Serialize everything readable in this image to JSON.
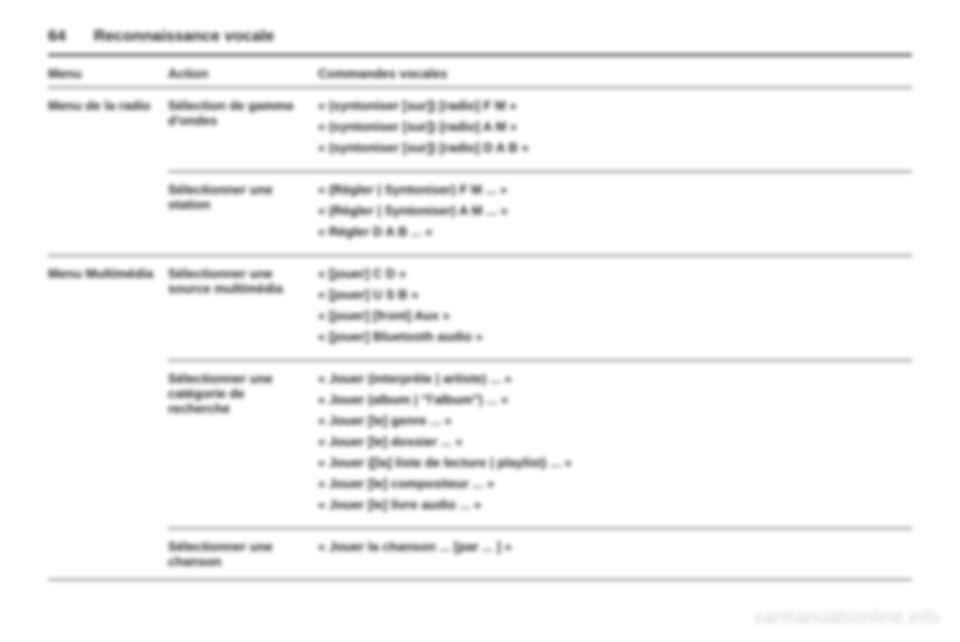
{
  "page_number": "64",
  "chapter_title": "Reconnaissance vocale",
  "columns": {
    "menu": "Menu",
    "action": "Action",
    "commands": "Commandes vocales"
  },
  "sections": [
    {
      "menu": "Menu de la radio",
      "blocks": [
        {
          "action": "Sélection de gamme d'ondes",
          "commands": [
            "« (syntoniser [sur]) [radio] F M »",
            "« (syntoniser [sur]) [radio] A M »",
            "« (syntoniser [sur]) [radio] D A B »"
          ]
        },
        {
          "action": "Sélectionner une station",
          "commands": [
            "« (Régler | Syntoniser) F M ... »",
            "« (Régler | Syntoniser) A M ... »",
            "« Régler D A B ... »"
          ]
        }
      ]
    },
    {
      "menu": "Menu Multimédia",
      "blocks": [
        {
          "action": "Sélectionner une source multimédia",
          "commands": [
            "« [jouer] C D »",
            "« [jouer] U S B »",
            "« [jouer] [front] Aux »",
            "« [jouer] Bluetooth audio »"
          ]
        },
        {
          "action": "Sélectionner une catégorie de recherche",
          "commands": [
            "« Jouer (interprète | artiste) ... »",
            "« Jouer (album | \"l'album\") ... »",
            "« Jouer [le] genre ... »",
            "« Jouer [le] dossier ... »",
            "« Jouer ([la] liste de lecture | playlist) ... »",
            "« Jouer [le] compositeur ... »",
            "« Jouer [le] livre audio ... »"
          ]
        },
        {
          "action": "Sélectionner une chanson",
          "commands": [
            "« Jouer la chanson ... [par ... ] »"
          ]
        }
      ]
    }
  ],
  "watermark": "carmanualsonline.info"
}
